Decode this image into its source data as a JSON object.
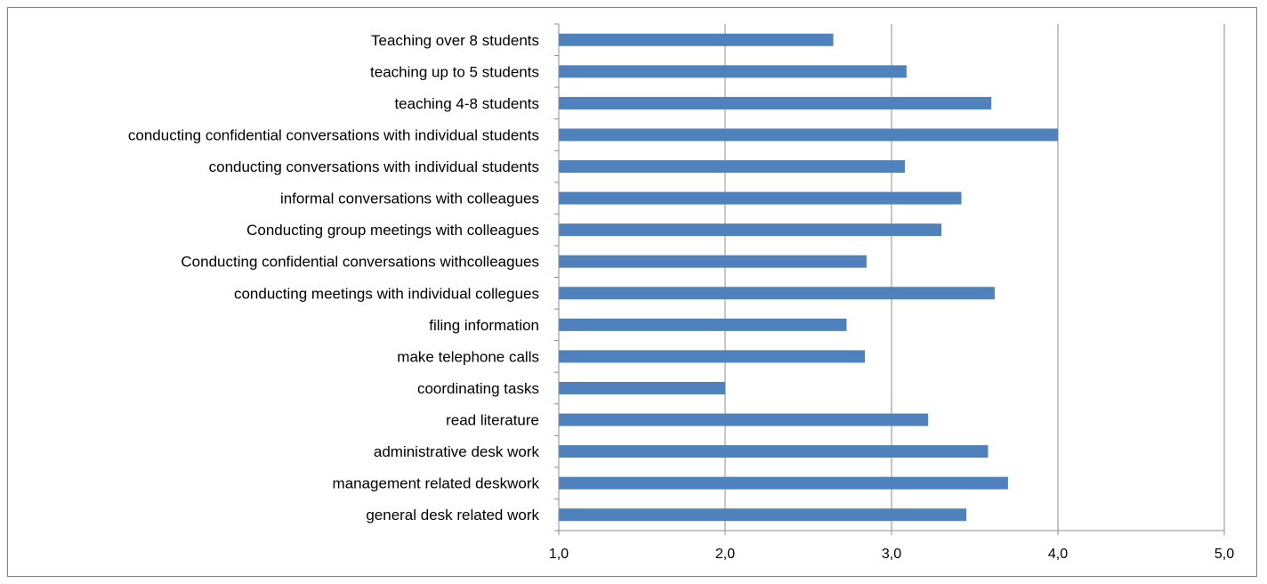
{
  "chart_data": {
    "type": "bar",
    "orientation": "horizontal",
    "title": "",
    "xlabel": "",
    "ylabel": "",
    "xlim": [
      1.0,
      5.0
    ],
    "x_ticks": [
      "1,0",
      "2,0",
      "3,0",
      "4,0",
      "5,0"
    ],
    "x_tick_values": [
      1.0,
      2.0,
      3.0,
      4.0,
      5.0
    ],
    "grid": "vertical major gridlines",
    "legend": "none",
    "bar_color": "#4F81BD",
    "categories": [
      "Teaching over 8 students",
      "teaching up to 5 students",
      "teaching 4-8 students",
      "conducting confidential conversations with individual students",
      "conducting conversations with individual students",
      "informal conversations with colleagues",
      "Conducting group meetings with colleagues",
      "Conducting confidential conversations withcolleagues",
      "conducting meetings with individual collegues",
      "filing information",
      "make telephone calls",
      "coordinating tasks",
      "read literature",
      "administrative desk work",
      "management related deskwork",
      "general desk related work"
    ],
    "values": [
      2.65,
      3.09,
      3.6,
      4.0,
      3.08,
      3.42,
      3.3,
      2.85,
      3.62,
      2.73,
      2.84,
      2.0,
      3.22,
      3.58,
      3.7,
      3.45
    ]
  }
}
